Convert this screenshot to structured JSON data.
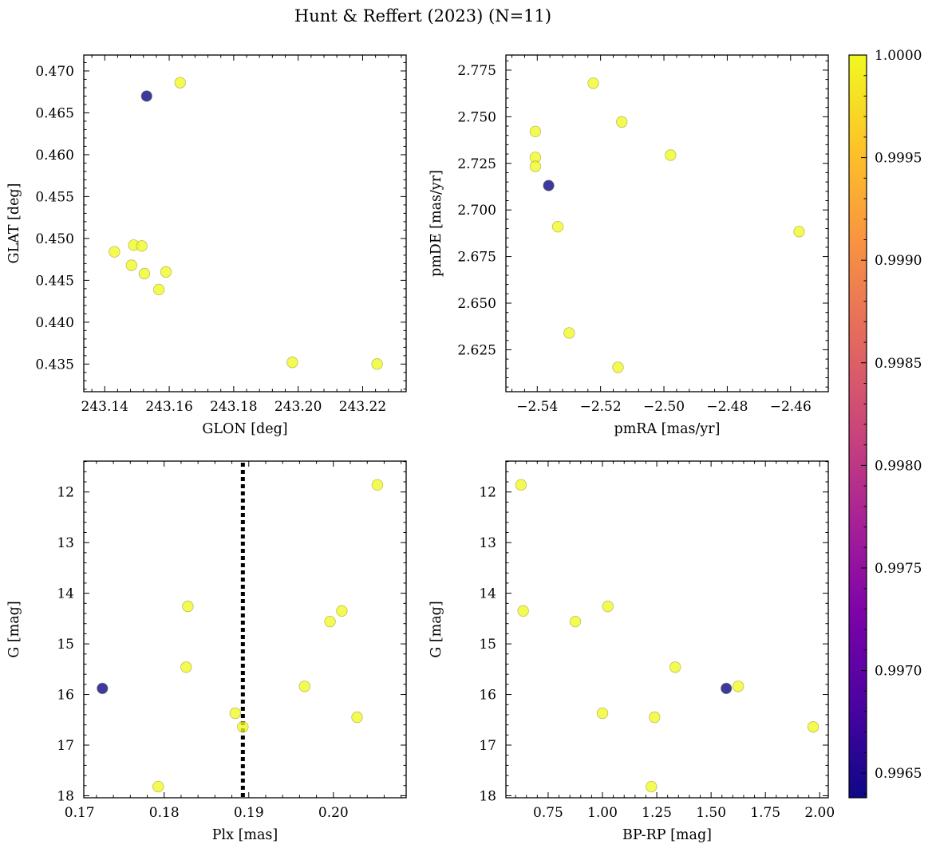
{
  "figure": {
    "title": "Hunt & Reffert (2023) (N=11)"
  },
  "colorbar": {
    "min": 0.99638,
    "max": 1.0,
    "ticks": [
      0.9965,
      0.997,
      0.9975,
      0.998,
      0.9985,
      0.999,
      0.9995,
      1.0
    ],
    "tick_labels": [
      "0.9965",
      "0.9970",
      "0.9975",
      "0.9980",
      "0.9985",
      "0.9990",
      "0.9995",
      "1.0000"
    ],
    "colormap": "plasma"
  },
  "chart_data": [
    {
      "type": "scatter",
      "xlabel": "GLON [deg]",
      "ylabel": "GLAT [deg]",
      "xlim": [
        243.1335,
        243.2335
      ],
      "ylim": [
        0.4317,
        0.4719
      ],
      "xticks": [
        243.14,
        243.16,
        243.18,
        243.2,
        243.22
      ],
      "xtick_labels": [
        "243.14",
        "243.16",
        "243.18",
        "243.20",
        "243.22"
      ],
      "yticks": [
        0.435,
        0.44,
        0.445,
        0.45,
        0.455,
        0.46,
        0.465,
        0.47
      ],
      "ytick_labels": [
        "0.435",
        "0.440",
        "0.445",
        "0.450",
        "0.455",
        "0.460",
        "0.465",
        "0.470"
      ],
      "y_inverted": false,
      "vline": null,
      "points": [
        {
          "x": 243.143,
          "y": 0.4484,
          "c": 1.0
        },
        {
          "x": 243.1483,
          "y": 0.4468,
          "c": 1.0
        },
        {
          "x": 243.149,
          "y": 0.4492,
          "c": 1.0
        },
        {
          "x": 243.1515,
          "y": 0.4491,
          "c": 1.0
        },
        {
          "x": 243.1523,
          "y": 0.4458,
          "c": 1.0
        },
        {
          "x": 243.153,
          "y": 0.467,
          "c": 0.99638
        },
        {
          "x": 243.1568,
          "y": 0.4439,
          "c": 1.0
        },
        {
          "x": 243.159,
          "y": 0.446,
          "c": 1.0
        },
        {
          "x": 243.1634,
          "y": 0.4686,
          "c": 1.0
        },
        {
          "x": 243.1982,
          "y": 0.4352,
          "c": 1.0
        },
        {
          "x": 243.2245,
          "y": 0.435,
          "c": 1.0
        }
      ]
    },
    {
      "type": "scatter",
      "xlabel": "pmRA [mas/yr]",
      "ylabel": "pmDE [mas/yr]",
      "xlim": [
        -2.5499,
        -2.4481
      ],
      "ylim": [
        2.6025,
        2.7831
      ],
      "xticks": [
        -2.54,
        -2.52,
        -2.5,
        -2.48,
        -2.46
      ],
      "xtick_labels": [
        "−2.54",
        "−2.52",
        "−2.50",
        "−2.48",
        "−2.46"
      ],
      "yticks": [
        2.625,
        2.65,
        2.675,
        2.7,
        2.725,
        2.75,
        2.775
      ],
      "ytick_labels": [
        "2.625",
        "2.650",
        "2.675",
        "2.700",
        "2.725",
        "2.750",
        "2.775"
      ],
      "y_inverted": false,
      "vline": null,
      "points": [
        {
          "x": -2.5406,
          "y": 2.7421,
          "c": 1.0
        },
        {
          "x": -2.5406,
          "y": 2.7282,
          "c": 1.0
        },
        {
          "x": -2.5406,
          "y": 2.7234,
          "c": 1.0
        },
        {
          "x": -2.5364,
          "y": 2.7131,
          "c": 0.99638
        },
        {
          "x": -2.5335,
          "y": 2.691,
          "c": 1.0
        },
        {
          "x": -2.5299,
          "y": 2.634,
          "c": 1.0
        },
        {
          "x": -2.5223,
          "y": 2.768,
          "c": 1.0
        },
        {
          "x": -2.5145,
          "y": 2.6156,
          "c": 1.0
        },
        {
          "x": -2.5133,
          "y": 2.7472,
          "c": 1.0
        },
        {
          "x": -2.4979,
          "y": 2.7294,
          "c": 1.0
        },
        {
          "x": -2.4573,
          "y": 2.6884,
          "c": 1.0
        }
      ]
    },
    {
      "type": "scatter",
      "xlabel": "Plx [mas]",
      "ylabel": "G [mag]",
      "xlim": [
        0.1705,
        0.2086
      ],
      "ylim": [
        18.04,
        11.39
      ],
      "xticks": [
        0.17,
        0.18,
        0.19,
        0.2
      ],
      "xtick_labels": [
        "0.17",
        "0.18",
        "0.19",
        "0.20"
      ],
      "yticks": [
        12,
        13,
        14,
        15,
        16,
        17,
        18
      ],
      "ytick_labels": [
        "12",
        "13",
        "14",
        "15",
        "16",
        "17",
        "18"
      ],
      "y_inverted": true,
      "vline": 0.1893,
      "points": [
        {
          "x": 0.1727,
          "y": 15.88,
          "c": 0.99638
        },
        {
          "x": 0.1793,
          "y": 17.82,
          "c": 1.0
        },
        {
          "x": 0.1826,
          "y": 15.46,
          "c": 1.0
        },
        {
          "x": 0.1828,
          "y": 14.26,
          "c": 1.0
        },
        {
          "x": 0.1884,
          "y": 16.37,
          "c": 1.0
        },
        {
          "x": 0.1893,
          "y": 16.64,
          "c": 1.0
        },
        {
          "x": 0.1966,
          "y": 15.84,
          "c": 1.0
        },
        {
          "x": 0.1996,
          "y": 14.56,
          "c": 1.0
        },
        {
          "x": 0.201,
          "y": 14.35,
          "c": 1.0
        },
        {
          "x": 0.2028,
          "y": 16.45,
          "c": 1.0
        },
        {
          "x": 0.2052,
          "y": 11.86,
          "c": 1.0
        }
      ]
    },
    {
      "type": "scatter",
      "xlabel": "BP-RP [mag]",
      "ylabel": "G [mag]",
      "xlim": [
        0.5555,
        2.0395
      ],
      "ylim": [
        18.04,
        11.39
      ],
      "xticks": [
        0.75,
        1.0,
        1.25,
        1.5,
        1.75,
        2.0
      ],
      "xtick_labels": [
        "0.75",
        "1.00",
        "1.25",
        "1.50",
        "1.75",
        "2.00"
      ],
      "yticks": [
        12,
        13,
        14,
        15,
        16,
        17,
        18
      ],
      "ytick_labels": [
        "12",
        "13",
        "14",
        "15",
        "16",
        "17",
        "18"
      ],
      "y_inverted": true,
      "vline": null,
      "points": [
        {
          "x": 0.625,
          "y": 11.86,
          "c": 1.0
        },
        {
          "x": 0.635,
          "y": 14.35,
          "c": 1.0
        },
        {
          "x": 0.875,
          "y": 14.56,
          "c": 1.0
        },
        {
          "x": 1.0,
          "y": 16.37,
          "c": 1.0
        },
        {
          "x": 1.025,
          "y": 14.26,
          "c": 1.0
        },
        {
          "x": 1.225,
          "y": 17.82,
          "c": 1.0
        },
        {
          "x": 1.24,
          "y": 16.45,
          "c": 1.0
        },
        {
          "x": 1.335,
          "y": 15.46,
          "c": 1.0
        },
        {
          "x": 1.57,
          "y": 15.88,
          "c": 0.99638
        },
        {
          "x": 1.625,
          "y": 15.84,
          "c": 1.0
        },
        {
          "x": 1.97,
          "y": 16.64,
          "c": 1.0
        }
      ]
    }
  ]
}
